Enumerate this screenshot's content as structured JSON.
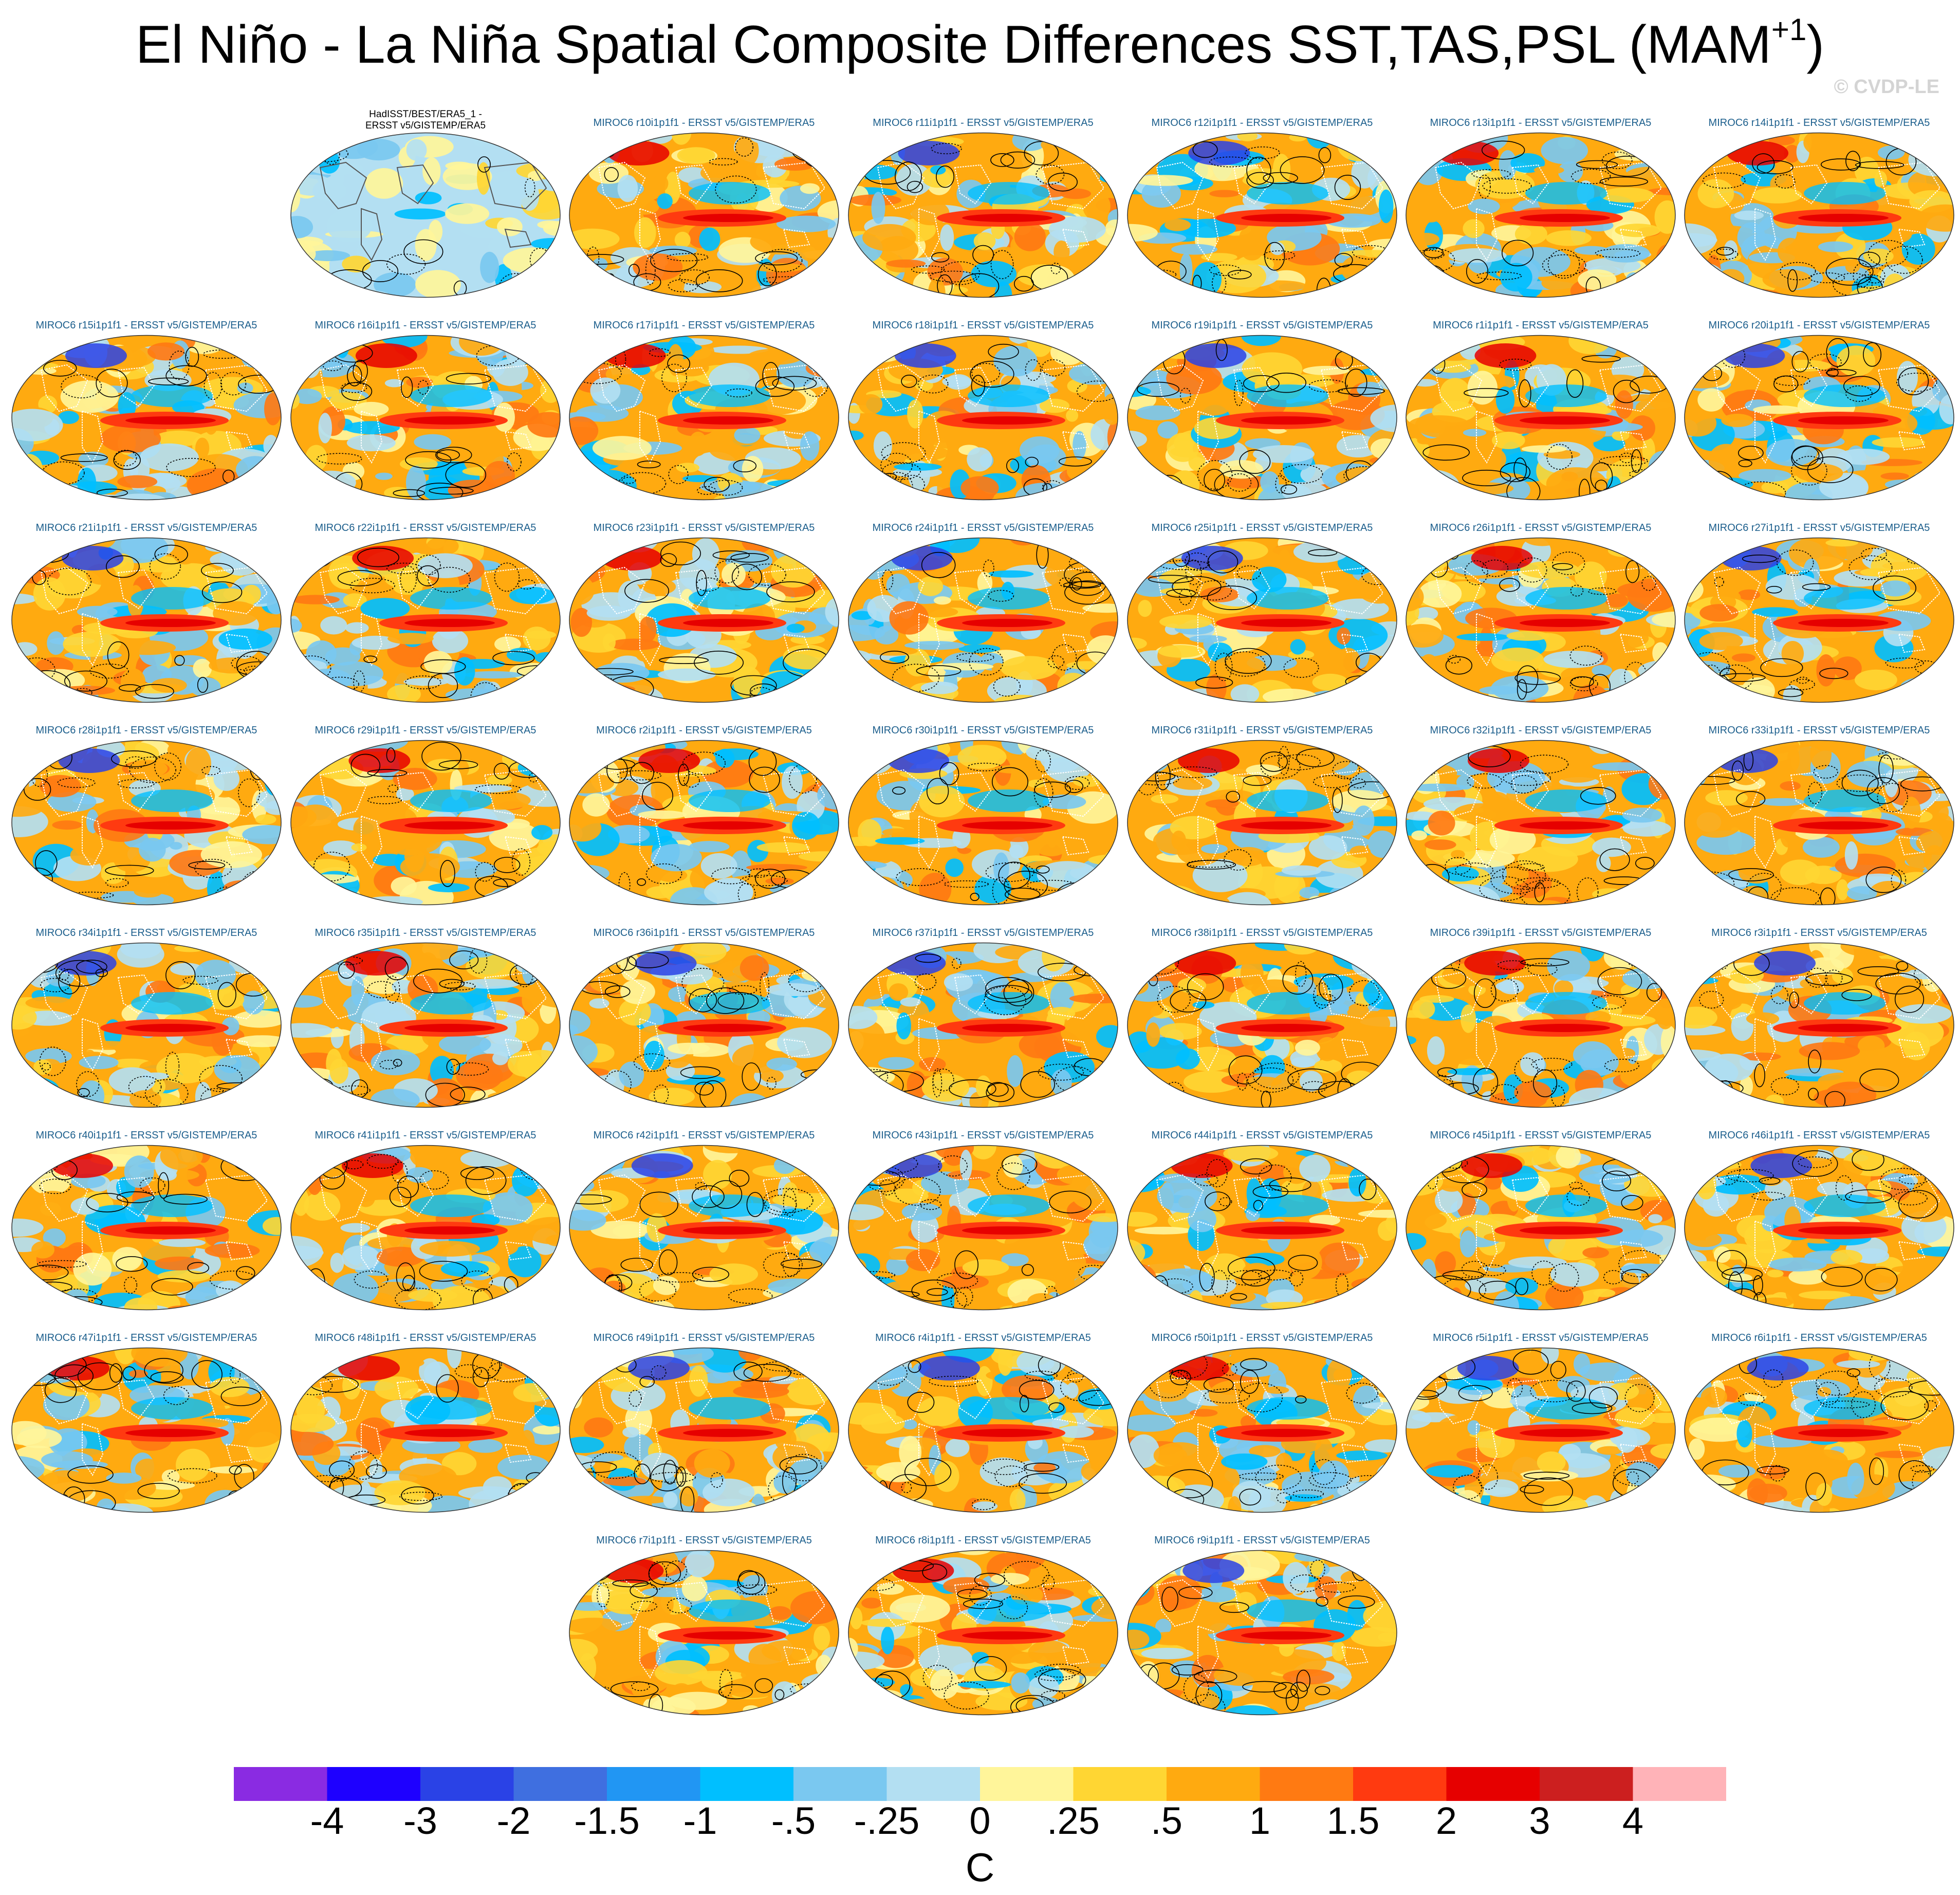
{
  "title": {
    "main": "El Niño - La Niña Spatial Composite Differences SST,TAS,PSL (MAM",
    "superscript": "+1",
    "close": ")"
  },
  "watermark": "© CVDP-LE",
  "panels": [
    {
      "label_line1": "HadISST/BEST/ERA5_1 -",
      "label_line2": "ERSST v5/GISTEMP/ERA5",
      "observational": true
    },
    {
      "label": "MIROC6 r10i1p1f1 - ERSST v5/GISTEMP/ERA5"
    },
    {
      "label": "MIROC6 r11i1p1f1 - ERSST v5/GISTEMP/ERA5"
    },
    {
      "label": "MIROC6 r12i1p1f1 - ERSST v5/GISTEMP/ERA5"
    },
    {
      "label": "MIROC6 r13i1p1f1 - ERSST v5/GISTEMP/ERA5"
    },
    {
      "label": "MIROC6 r14i1p1f1 - ERSST v5/GISTEMP/ERA5"
    },
    {
      "label": "MIROC6 r15i1p1f1 - ERSST v5/GISTEMP/ERA5"
    },
    {
      "label": "MIROC6 r16i1p1f1 - ERSST v5/GISTEMP/ERA5"
    },
    {
      "label": "MIROC6 r17i1p1f1 - ERSST v5/GISTEMP/ERA5"
    },
    {
      "label": "MIROC6 r18i1p1f1 - ERSST v5/GISTEMP/ERA5"
    },
    {
      "label": "MIROC6 r19i1p1f1 - ERSST v5/GISTEMP/ERA5"
    },
    {
      "label": "MIROC6 r1i1p1f1 - ERSST v5/GISTEMP/ERA5"
    },
    {
      "label": "MIROC6 r20i1p1f1 - ERSST v5/GISTEMP/ERA5"
    },
    {
      "label": "MIROC6 r21i1p1f1 - ERSST v5/GISTEMP/ERA5"
    },
    {
      "label": "MIROC6 r22i1p1f1 - ERSST v5/GISTEMP/ERA5"
    },
    {
      "label": "MIROC6 r23i1p1f1 - ERSST v5/GISTEMP/ERA5"
    },
    {
      "label": "MIROC6 r24i1p1f1 - ERSST v5/GISTEMP/ERA5"
    },
    {
      "label": "MIROC6 r25i1p1f1 - ERSST v5/GISTEMP/ERA5"
    },
    {
      "label": "MIROC6 r26i1p1f1 - ERSST v5/GISTEMP/ERA5"
    },
    {
      "label": "MIROC6 r27i1p1f1 - ERSST v5/GISTEMP/ERA5"
    },
    {
      "label": "MIROC6 r28i1p1f1 - ERSST v5/GISTEMP/ERA5"
    },
    {
      "label": "MIROC6 r29i1p1f1 - ERSST v5/GISTEMP/ERA5"
    },
    {
      "label": "MIROC6 r2i1p1f1 - ERSST v5/GISTEMP/ERA5"
    },
    {
      "label": "MIROC6 r30i1p1f1 - ERSST v5/GISTEMP/ERA5"
    },
    {
      "label": "MIROC6 r31i1p1f1 - ERSST v5/GISTEMP/ERA5"
    },
    {
      "label": "MIROC6 r32i1p1f1 - ERSST v5/GISTEMP/ERA5"
    },
    {
      "label": "MIROC6 r33i1p1f1 - ERSST v5/GISTEMP/ERA5"
    },
    {
      "label": "MIROC6 r34i1p1f1 - ERSST v5/GISTEMP/ERA5"
    },
    {
      "label": "MIROC6 r35i1p1f1 - ERSST v5/GISTEMP/ERA5"
    },
    {
      "label": "MIROC6 r36i1p1f1 - ERSST v5/GISTEMP/ERA5"
    },
    {
      "label": "MIROC6 r37i1p1f1 - ERSST v5/GISTEMP/ERA5"
    },
    {
      "label": "MIROC6 r38i1p1f1 - ERSST v5/GISTEMP/ERA5"
    },
    {
      "label": "MIROC6 r39i1p1f1 - ERSST v5/GISTEMP/ERA5"
    },
    {
      "label": "MIROC6 r3i1p1f1 - ERSST v5/GISTEMP/ERA5"
    },
    {
      "label": "MIROC6 r40i1p1f1 - ERSST v5/GISTEMP/ERA5"
    },
    {
      "label": "MIROC6 r41i1p1f1 - ERSST v5/GISTEMP/ERA5"
    },
    {
      "label": "MIROC6 r42i1p1f1 - ERSST v5/GISTEMP/ERA5"
    },
    {
      "label": "MIROC6 r43i1p1f1 - ERSST v5/GISTEMP/ERA5"
    },
    {
      "label": "MIROC6 r44i1p1f1 - ERSST v5/GISTEMP/ERA5"
    },
    {
      "label": "MIROC6 r45i1p1f1 - ERSST v5/GISTEMP/ERA5"
    },
    {
      "label": "MIROC6 r46i1p1f1 - ERSST v5/GISTEMP/ERA5"
    },
    {
      "label": "MIROC6 r47i1p1f1 - ERSST v5/GISTEMP/ERA5"
    },
    {
      "label": "MIROC6 r48i1p1f1 - ERSST v5/GISTEMP/ERA5"
    },
    {
      "label": "MIROC6 r49i1p1f1 - ERSST v5/GISTEMP/ERA5"
    },
    {
      "label": "MIROC6 r4i1p1f1 - ERSST v5/GISTEMP/ERA5"
    },
    {
      "label": "MIROC6 r50i1p1f1 - ERSST v5/GISTEMP/ERA5"
    },
    {
      "label": "MIROC6 r5i1p1f1 - ERSST v5/GISTEMP/ERA5"
    },
    {
      "label": "MIROC6 r6i1p1f1 - ERSST v5/GISTEMP/ERA5"
    },
    {
      "label": "MIROC6 r7i1p1f1 - ERSST v5/GISTEMP/ERA5"
    },
    {
      "label": "MIROC6 r8i1p1f1 - ERSST v5/GISTEMP/ERA5"
    },
    {
      "label": "MIROC6 r9i1p1f1 - ERSST v5/GISTEMP/ERA5"
    }
  ],
  "chart_data": {
    "type": "heatmap",
    "title": "El Niño - La Niña Spatial Composite Differences SST,TAS,PSL (MAM+1)",
    "variables": [
      "SST",
      "TAS",
      "PSL"
    ],
    "season": "MAM+1",
    "projection": "Robinson (global)",
    "colorbar": {
      "units": "C",
      "tick_labels": [
        "-4",
        "-3",
        "-2",
        "-1.5",
        "-1",
        "-.5",
        "-.25",
        "0",
        ".25",
        ".5",
        "1",
        "1.5",
        "2",
        "3",
        "4"
      ],
      "colors": [
        "#8a2be2",
        "#1e00ff",
        "#2a42e6",
        "#3f6fe0",
        "#2196f3",
        "#00bfff",
        "#7ac8f0",
        "#b3dff2",
        "#fff59a",
        "#ffd633",
        "#ffaa10",
        "#ff7a12",
        "#ff3a10",
        "#e60000",
        "#cc1f1f",
        "#ffb3b8"
      ]
    },
    "contours": "PSL anomalies (solid positive, dashed negative)"
  }
}
